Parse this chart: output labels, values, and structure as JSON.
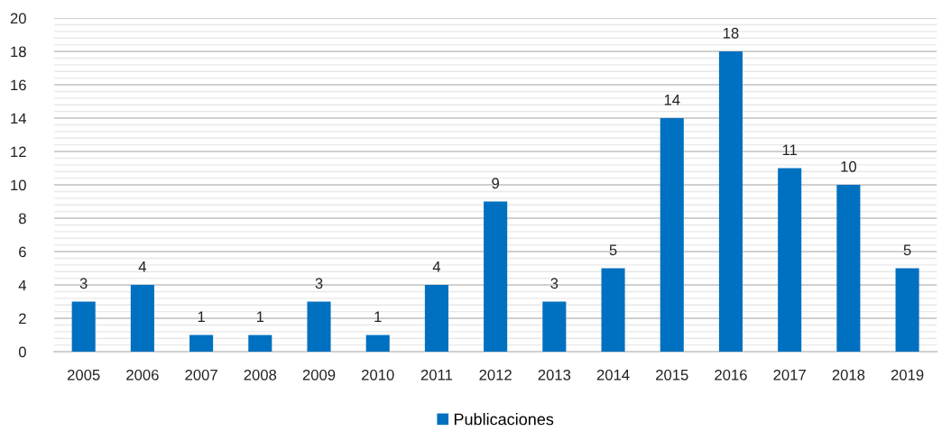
{
  "chart_data": {
    "type": "bar",
    "categories": [
      "2005",
      "2006",
      "2007",
      "2008",
      "2009",
      "2010",
      "2011",
      "2012",
      "2013",
      "2014",
      "2015",
      "2016",
      "2017",
      "2018",
      "2019"
    ],
    "series": [
      {
        "name": "Publicaciones",
        "color": "#0070c0",
        "values": [
          3,
          4,
          1,
          1,
          3,
          1,
          4,
          9,
          3,
          5,
          14,
          18,
          11,
          10,
          5
        ]
      }
    ],
    "ylim": [
      0,
      20
    ],
    "yticks": [
      0,
      {
        "value": 0.4,
        "label": null
      },
      {
        "value": 0.8,
        "label": null
      },
      {
        "value": 1.2,
        "label": null
      },
      {
        "value": 1.6,
        "label": null
      },
      2,
      {
        "value": 2.4,
        "label": null
      },
      {
        "value": 2.8,
        "label": null
      },
      {
        "value": 3.2,
        "label": null
      },
      {
        "value": 3.6,
        "label": null
      },
      4,
      {
        "value": 4.4,
        "label": null
      },
      {
        "value": 4.8,
        "label": null
      },
      {
        "value": 5.2,
        "label": null
      },
      {
        "value": 5.6,
        "label": null
      },
      6,
      {
        "value": 6.4,
        "label": null
      },
      {
        "value": 6.8,
        "label": null
      },
      {
        "value": 7.2,
        "label": null
      },
      {
        "value": 7.6,
        "label": null
      },
      8,
      {
        "value": 8.4,
        "label": null
      },
      {
        "value": 8.8,
        "label": null
      },
      {
        "value": 9.2,
        "label": null
      },
      {
        "value": 9.6,
        "label": null
      },
      10,
      {
        "value": 10.4,
        "label": null
      },
      {
        "value": 10.8,
        "label": null
      },
      {
        "value": 11.2,
        "label": null
      },
      {
        "value": 11.6,
        "label": null
      },
      12,
      {
        "value": 12.4,
        "label": null
      },
      {
        "value": 12.8,
        "label": null
      },
      {
        "value": 13.2,
        "label": null
      },
      {
        "value": 13.6,
        "label": null
      },
      14,
      {
        "value": 14.4,
        "label": null
      },
      {
        "value": 14.8,
        "label": null
      },
      {
        "value": 15.2,
        "label": null
      },
      {
        "value": 15.6,
        "label": null
      },
      16,
      {
        "value": 16.4,
        "label": null
      },
      {
        "value": 16.8,
        "label": null
      },
      {
        "value": 17.2,
        "label": null
      },
      {
        "value": 17.6,
        "label": null
      },
      18,
      {
        "value": 18.4,
        "label": null
      },
      {
        "value": 18.8,
        "label": null
      },
      {
        "value": 19.2,
        "label": null
      },
      {
        "value": 19.6,
        "label": null
      },
      20
    ],
    "grid": "y",
    "legend": "bottom",
    "data_labels": true
  }
}
